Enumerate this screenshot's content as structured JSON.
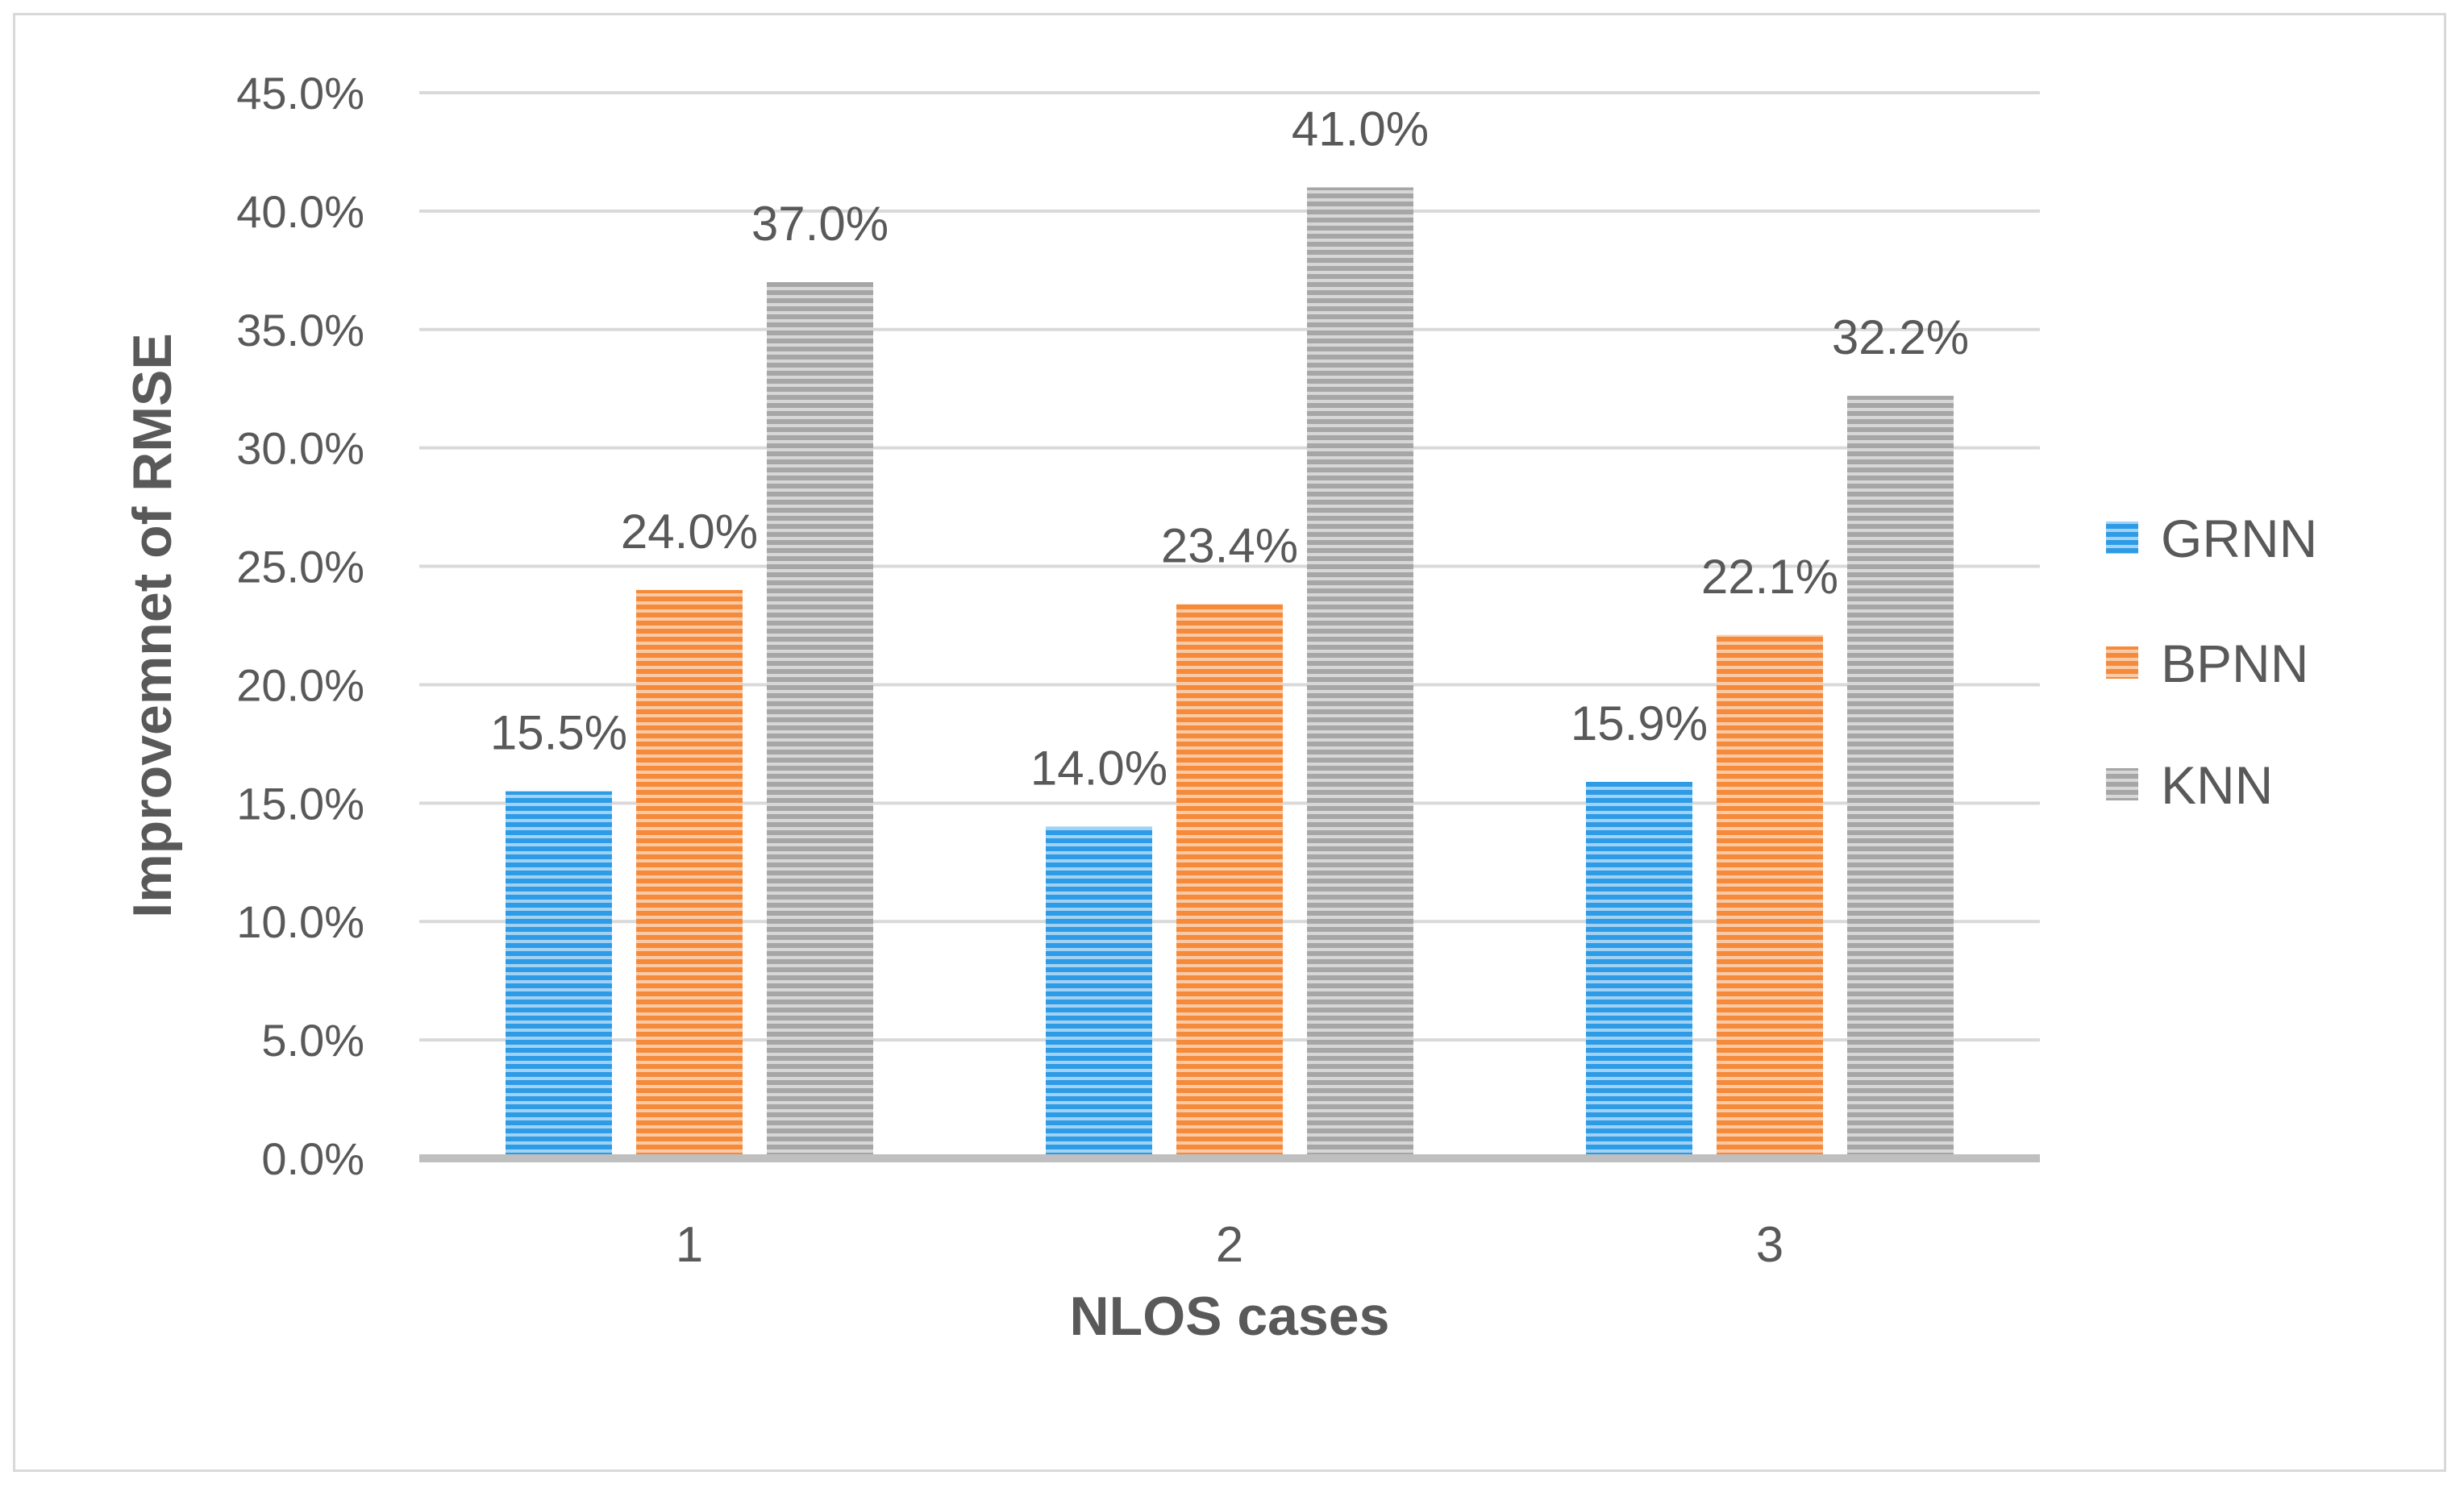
{
  "chart_data": {
    "type": "bar",
    "title": "",
    "xlabel": "NLOS cases",
    "ylabel": "Improvemnet of RMSE",
    "categories": [
      "1",
      "2",
      "3"
    ],
    "series": [
      {
        "name": "GRNN",
        "color": "#2e9be6",
        "values": [
          15.5,
          14.0,
          15.9
        ],
        "labels": [
          "15.5%",
          "14.0%",
          "15.9%"
        ]
      },
      {
        "name": "BPNN",
        "color": "#f58a3a",
        "values": [
          24.0,
          23.4,
          22.1
        ],
        "labels": [
          "24.0%",
          "23.4%",
          "22.1%"
        ]
      },
      {
        "name": "KNN",
        "color": "#a6a6a6",
        "values": [
          37.0,
          41.0,
          32.2
        ],
        "labels": [
          "37.0%",
          "41.0%",
          "32.2%"
        ]
      }
    ],
    "ylim": [
      0,
      45
    ],
    "yticks": [
      0,
      5,
      10,
      15,
      20,
      25,
      30,
      35,
      40,
      45
    ],
    "ytick_labels": [
      "0.0%",
      "5.0%",
      "10.0%",
      "15.0%",
      "20.0%",
      "25.0%",
      "30.0%",
      "35.0%",
      "40.0%",
      "45.0%"
    ],
    "grid": true,
    "legend_position": "right"
  }
}
